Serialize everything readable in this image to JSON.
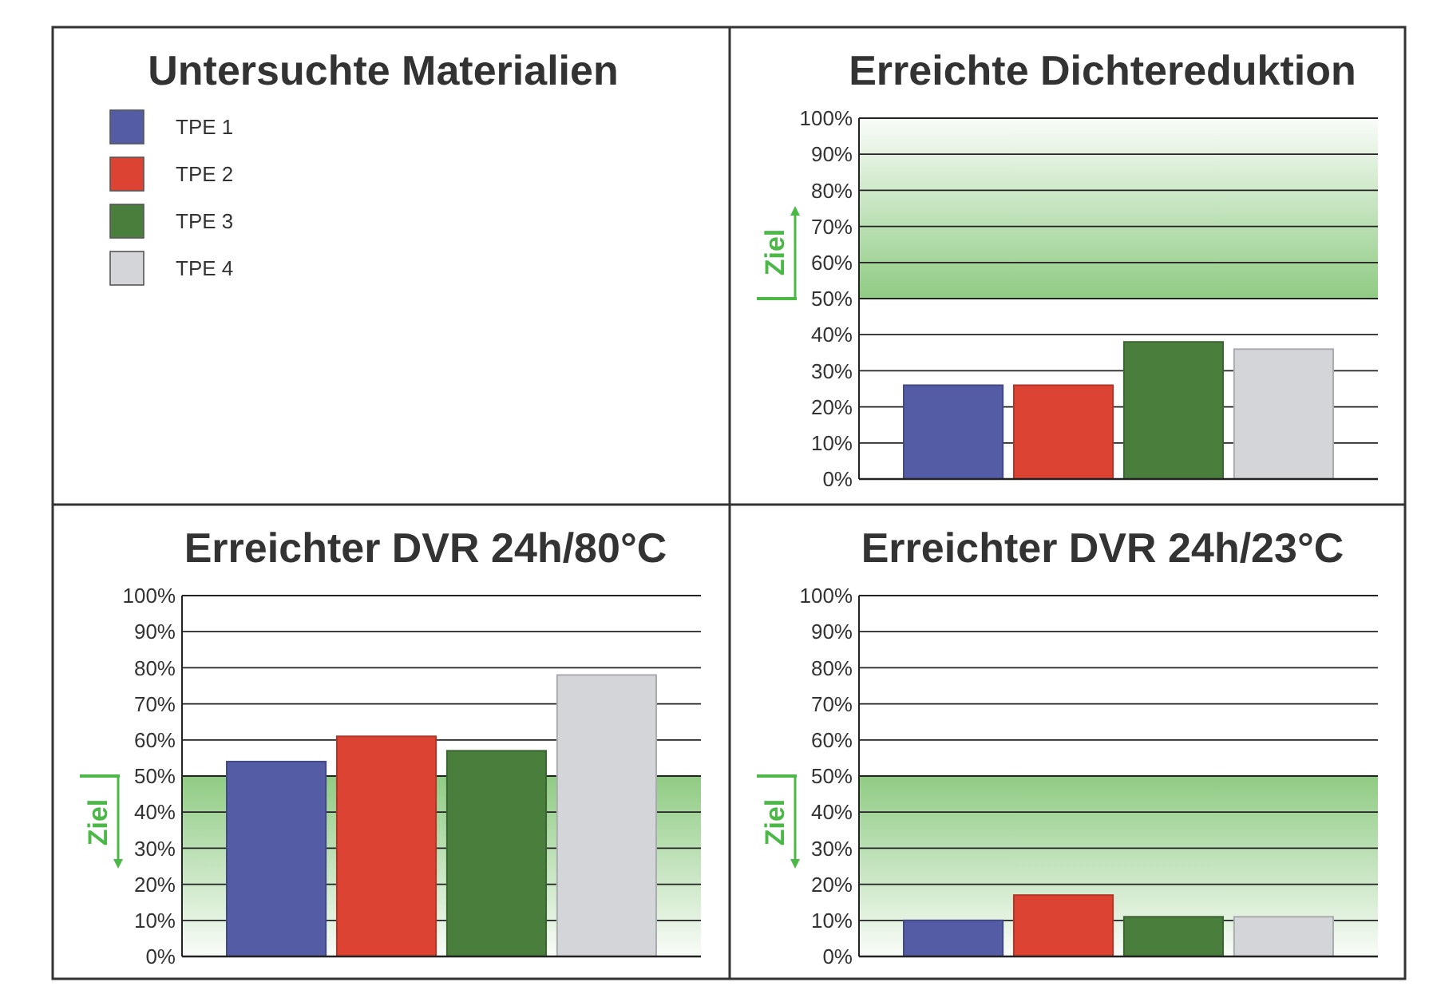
{
  "chart_data": [
    {
      "type": "other",
      "title": "Untersuchte Materialien",
      "annotations": [
        "TPE 1",
        "TPE 2",
        "TPE 3",
        "TPE 4"
      ]
    },
    {
      "type": "bar",
      "title": "Erreichte Dichtereduktion",
      "categories": [
        null,
        null,
        null,
        null
      ],
      "values": [
        26,
        26,
        38,
        36
      ],
      "colors": [
        "#545ca6",
        "#dc4332",
        "#4a7e3d",
        "#d4d5d9"
      ],
      "ylim": [
        0,
        100
      ],
      "yticks": [
        {
          "value": 0,
          "label": "0%"
        },
        {
          "value": 10,
          "label": "10%"
        },
        {
          "value": 20,
          "label": "20%"
        },
        {
          "value": 30,
          "label": "30%"
        },
        {
          "value": 40,
          "label": "40%"
        },
        {
          "value": 50,
          "label": "50%"
        },
        {
          "value": 60,
          "label": "60%"
        },
        {
          "value": 70,
          "label": "70%"
        },
        {
          "value": 80,
          "label": "80%"
        },
        {
          "value": 90,
          "label": "90%"
        },
        {
          "value": 100,
          "label": "100%"
        }
      ],
      "grid": "y",
      "bands": [
        {
          "axis": "y",
          "from": 50,
          "to": 100,
          "label": "Ziel",
          "color": "#8fcb83"
        }
      ]
    },
    {
      "type": "bar",
      "title": "Erreichter DVR 24h/80°C",
      "categories": [
        null,
        null,
        null,
        null
      ],
      "values": [
        54,
        61,
        57,
        78
      ],
      "colors": [
        "#545ca6",
        "#dc4332",
        "#4a7e3d",
        "#d4d5d9"
      ],
      "ylim": [
        0,
        100
      ],
      "yticks": [
        {
          "value": 0,
          "label": "0%"
        },
        {
          "value": 10,
          "label": "10%"
        },
        {
          "value": 20,
          "label": "20%"
        },
        {
          "value": 30,
          "label": "30%"
        },
        {
          "value": 40,
          "label": "40%"
        },
        {
          "value": 50,
          "label": "50%"
        },
        {
          "value": 60,
          "label": "60%"
        },
        {
          "value": 70,
          "label": "70%"
        },
        {
          "value": 80,
          "label": "80%"
        },
        {
          "value": 90,
          "label": "90%"
        },
        {
          "value": 100,
          "label": "100%"
        }
      ],
      "grid": "y",
      "bands": [
        {
          "axis": "y",
          "from": 50,
          "to": 0,
          "label": "Ziel",
          "color": "#8fcb83"
        }
      ]
    },
    {
      "type": "bar",
      "title": "Erreichter DVR 24h/23°C",
      "categories": [
        null,
        null,
        null,
        null
      ],
      "values": [
        10,
        17,
        11,
        11
      ],
      "colors": [
        "#545ca6",
        "#dc4332",
        "#4a7e3d",
        "#d4d5d9"
      ],
      "ylim": [
        0,
        100
      ],
      "yticks": [
        {
          "value": 0,
          "label": "0%"
        },
        {
          "value": 10,
          "label": "10%"
        },
        {
          "value": 20,
          "label": "20%"
        },
        {
          "value": 30,
          "label": "30%"
        },
        {
          "value": 40,
          "label": "40%"
        },
        {
          "value": 50,
          "label": "50%"
        },
        {
          "value": 60,
          "label": "60%"
        },
        {
          "value": 70,
          "label": "70%"
        },
        {
          "value": 80,
          "label": "80%"
        },
        {
          "value": 90,
          "label": "90%"
        },
        {
          "value": 100,
          "label": "100%"
        }
      ],
      "grid": "y",
      "bands": [
        {
          "axis": "y",
          "from": 50,
          "to": 0,
          "label": "Ziel",
          "color": "#8fcb83"
        }
      ]
    }
  ]
}
